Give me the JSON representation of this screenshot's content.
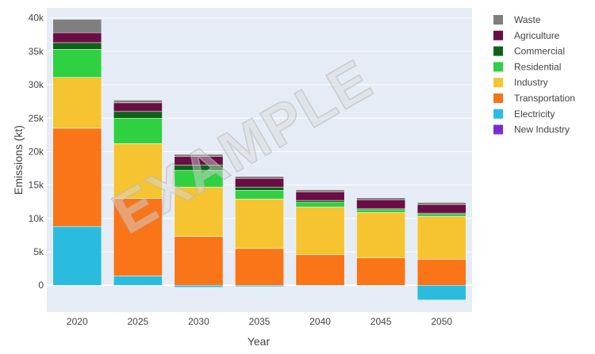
{
  "chart_data": {
    "type": "bar",
    "barmode": "relative",
    "categories": [
      "2020",
      "2025",
      "2030",
      "2035",
      "2040",
      "2045",
      "2050"
    ],
    "xlabel": "Year",
    "ylabel": "Emissions (kt)",
    "ylim": [
      -4000,
      41500
    ],
    "yticks": [
      0,
      5000,
      10000,
      15000,
      20000,
      25000,
      30000,
      35000,
      40000
    ],
    "ytick_labels": [
      "0",
      "5k",
      "10k",
      "15k",
      "20k",
      "25k",
      "30k",
      "35k",
      "40k"
    ],
    "grid": true,
    "legend_position": "top-right",
    "watermark": "EXAMPLE",
    "series": [
      {
        "name": "Electricity",
        "color": "#29bcdf",
        "values": [
          8800,
          1400,
          -300,
          -200,
          0,
          0,
          -2200
        ]
      },
      {
        "name": "Transportation",
        "color": "#fa7418",
        "values": [
          14700,
          11600,
          7300,
          5500,
          4600,
          4100,
          3900
        ]
      },
      {
        "name": "Industry",
        "color": "#f5c430",
        "values": [
          7600,
          8200,
          7400,
          7400,
          7100,
          6800,
          6400
        ]
      },
      {
        "name": "Residential",
        "color": "#2fd041",
        "values": [
          4200,
          3800,
          2500,
          1300,
          700,
          400,
          300
        ]
      },
      {
        "name": "Commercial",
        "color": "#0e621a",
        "values": [
          1000,
          1000,
          800,
          500,
          300,
          200,
          200
        ]
      },
      {
        "name": "Agriculture",
        "color": "#6b0d45",
        "values": [
          1500,
          1300,
          1300,
          1300,
          1300,
          1300,
          1300
        ]
      },
      {
        "name": "Waste",
        "color": "#7f7f7f",
        "values": [
          2000,
          400,
          300,
          300,
          300,
          300,
          300
        ]
      },
      {
        "name": "New Industry",
        "color": "#7b2ad1",
        "values": [
          0,
          0,
          0,
          0,
          0,
          0,
          0
        ]
      }
    ],
    "legend_order": [
      "Waste",
      "Agriculture",
      "Commercial",
      "Residential",
      "Industry",
      "Transportation",
      "Electricity",
      "New Industry"
    ]
  }
}
